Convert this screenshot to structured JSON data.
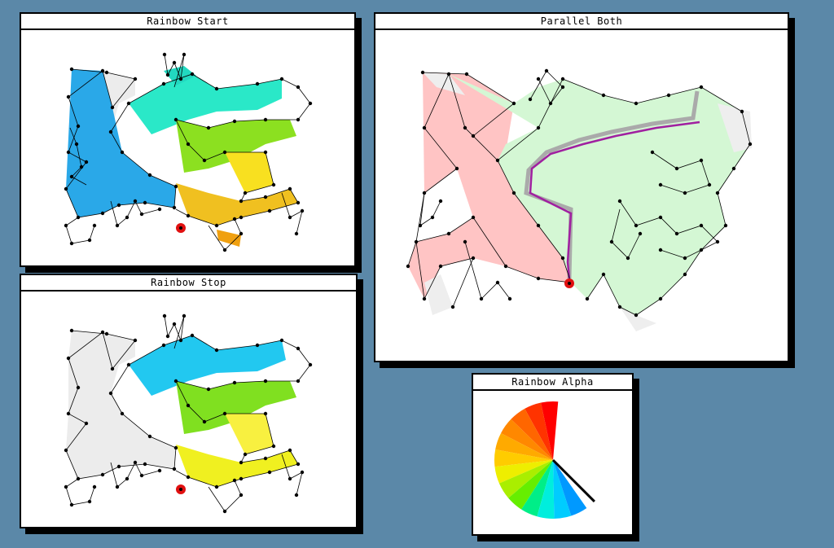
{
  "windows": {
    "rainbow_start": {
      "title": "Rainbow Start"
    },
    "rainbow_stop": {
      "title": "Rainbow Stop"
    },
    "parallel_both": {
      "title": "Parallel Both"
    },
    "rainbow_alpha": {
      "title": "Rainbow Alpha"
    }
  },
  "colors": {
    "desktop": "#5b88a8",
    "start_marker": "#e01010",
    "gray_fill": "#eeeeee",
    "pink_fill": "#ffc4c4",
    "green_fill": "#d4f7d4",
    "path_gray": "#aaaaaa",
    "path_purple": "#a020a0"
  },
  "alpha_wheel_colors": [
    "#ff0000",
    "#ff3300",
    "#ff6600",
    "#ff8800",
    "#ffaa00",
    "#ffcc00",
    "#eeee00",
    "#aaee00",
    "#66ee00",
    "#00ee88",
    "#00eedd",
    "#00ccff",
    "#0099ff"
  ]
}
